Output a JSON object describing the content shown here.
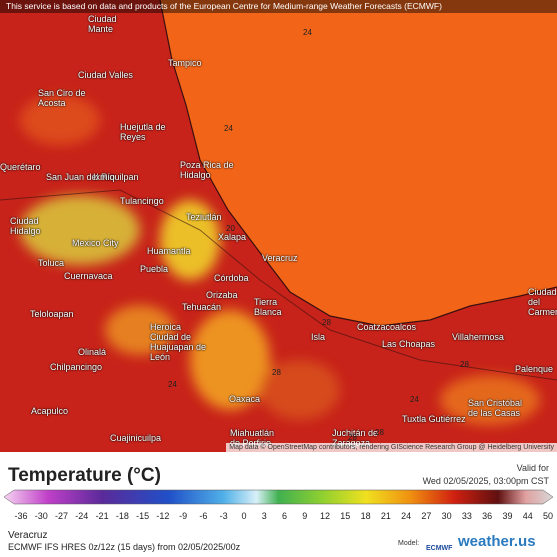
{
  "header": {
    "notice": "This service is based on data and products of the European Centre for Medium-range Weather Forecasts (ECMWF)"
  },
  "places": [
    "Ciudad Mante",
    "Tampico",
    "Ciudad Valles",
    "San Ciro de Acosta",
    "Huejutla de Reyes",
    "Poza Rica de Hidalgo",
    "Querétaro",
    "San Juan del Río",
    "Ixmiquilpan",
    "Tulancingo",
    "Ciudad Hidalgo",
    "Teziutlán",
    "Xalapa",
    "Mexico City",
    "Huamantla",
    "Toluca",
    "Cuernavaca",
    "Puebla",
    "Córdoba",
    "Veracruz",
    "Orizaba",
    "Tehuacán",
    "Tierra Blanca",
    "Teloloapan",
    "Heroica Ciudad de Huajuapan de León",
    "Coatzacoalcos",
    "Isla",
    "Las Choapas",
    "Villahermosa",
    "Ciudad del Carmen",
    "Palenque",
    "Olinalá",
    "Chilpancingo",
    "Oaxaca",
    "Acapulco",
    "San Cristóbal de las Casas",
    "Tuxtla Gutiérrez",
    "Miahuatlán de Porfirio",
    "Juchitán de Zaragoza",
    "Cuajinicuilpa"
  ],
  "isotherms": [
    "24",
    "24",
    "28",
    "20",
    "24",
    "28",
    "28",
    "24",
    "28",
    "28"
  ],
  "attribution": "Map data © OpenStreetMap contributors, rendering GIScience Research Group @ Heidelberg University",
  "legend": {
    "title": "Temperature (°C)",
    "valid_label": "Valid for",
    "valid_time": "Wed 02/05/2025, 03:00pm CST",
    "ticks": [
      -36,
      -30,
      -27,
      -24,
      -21,
      -18,
      -15,
      -12,
      -9,
      -6,
      -3,
      0,
      3,
      6,
      9,
      12,
      15,
      18,
      21,
      24,
      27,
      30,
      33,
      36,
      39,
      44,
      50
    ]
  },
  "footer": {
    "location": "Veracruz",
    "model_run": "ECMWF IFS HRES 0z/12z (15 days) from 02/05/2025/00z",
    "model_label": "Model:",
    "model_name": "ECMWF",
    "brand": "weather.us"
  }
}
